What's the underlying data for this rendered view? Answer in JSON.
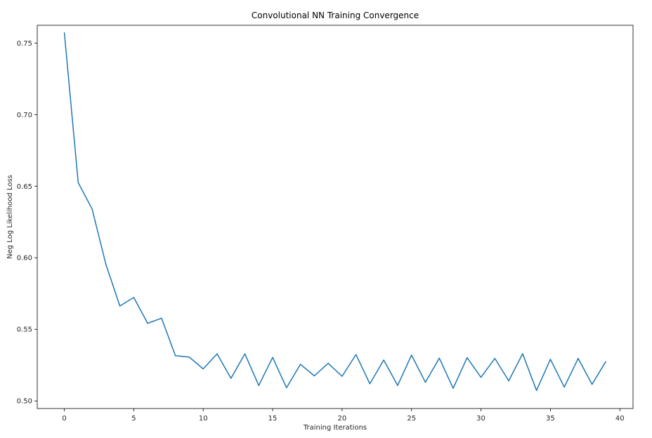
{
  "chart_data": {
    "type": "line",
    "title": "Convolutional NN Training Convergence",
    "xlabel": "Training Iterations",
    "ylabel": "Neg Log Likelihood Loss",
    "xlim": [
      -1.95,
      40.95
    ],
    "ylim": [
      0.4947,
      0.7624
    ],
    "xticks": [
      0,
      5,
      10,
      15,
      20,
      25,
      30,
      35,
      40
    ],
    "xtick_labels": [
      "0",
      "5",
      "10",
      "15",
      "20",
      "25",
      "30",
      "35",
      "40"
    ],
    "yticks": [
      0.5,
      0.55,
      0.6,
      0.65,
      0.7,
      0.75
    ],
    "ytick_labels": [
      "0.50",
      "0.55",
      "0.60",
      "0.65",
      "0.70",
      "0.75"
    ],
    "grid": false,
    "line_color": "#1f77b4",
    "series": [
      {
        "x": [
          0,
          1,
          2,
          3,
          4,
          5,
          6,
          7,
          8,
          9,
          10,
          11,
          12,
          13,
          14,
          15,
          16,
          17,
          18,
          19,
          20,
          21,
          22,
          23,
          24,
          25,
          26,
          27,
          28,
          29,
          30,
          31,
          32,
          33,
          34,
          35,
          36,
          37,
          38,
          39
        ],
        "values": [
          0.7574,
          0.6525,
          0.6341,
          0.5952,
          0.5663,
          0.5723,
          0.5542,
          0.5578,
          0.5316,
          0.5306,
          0.5224,
          0.5329,
          0.5158,
          0.5329,
          0.5108,
          0.5304,
          0.5092,
          0.5256,
          0.5175,
          0.5263,
          0.5172,
          0.5324,
          0.512,
          0.5286,
          0.5108,
          0.532,
          0.513,
          0.5299,
          0.5088,
          0.5302,
          0.5165,
          0.5297,
          0.514,
          0.533,
          0.5073,
          0.5291,
          0.5097,
          0.5297,
          0.5116,
          0.5277
        ]
      }
    ]
  }
}
